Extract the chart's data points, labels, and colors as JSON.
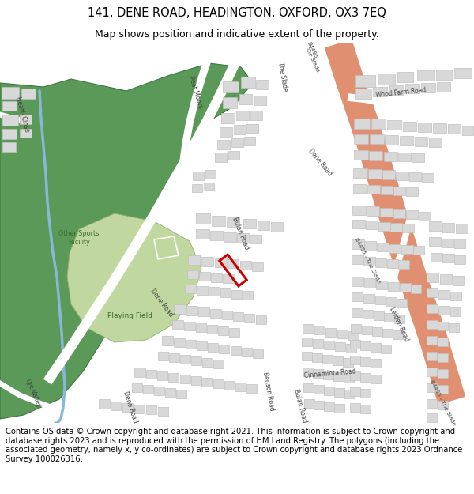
{
  "title_line1": "141, DENE ROAD, HEADINGTON, OXFORD, OX3 7EQ",
  "title_line2": "Map shows position and indicative extent of the property.",
  "copyright_text": "Contains OS data © Crown copyright and database right 2021. This information is subject to Crown copyright and database rights 2023 and is reproduced with the permission of HM Land Registry. The polygons (including the associated geometry, namely x, y co-ordinates) are subject to Crown copyright and database rights 2023 Ordnance Survey 100026316.",
  "title_fontsize": 10.5,
  "subtitle_fontsize": 9,
  "copyright_fontsize": 7.2,
  "bg_white": "#ffffff",
  "map_bg": "#f0ede5",
  "green_dark": "#5a9e5a",
  "green_light": "#c8deb0",
  "road_orange": "#e8a878",
  "road_white": "#ffffff",
  "building_fill": "#d8d8d8",
  "building_edge": "#c0c0c0",
  "water_color": "#a0c8e0",
  "plot_edge": "#cc0000",
  "text_dark": "#404040",
  "text_green": "#3a6a30"
}
